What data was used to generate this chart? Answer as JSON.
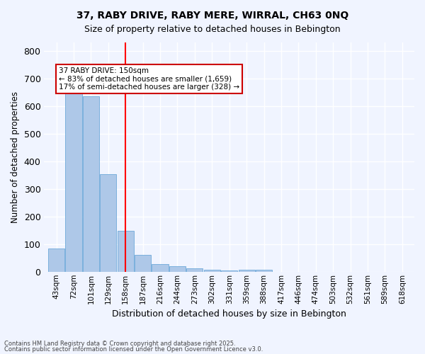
{
  "title1": "37, RABY DRIVE, RABY MERE, WIRRAL, CH63 0NQ",
  "title2": "Size of property relative to detached houses in Bebington",
  "xlabel": "Distribution of detached houses by size in Bebington",
  "ylabel": "Number of detached properties",
  "categories": [
    "43sqm",
    "72sqm",
    "101sqm",
    "129sqm",
    "158sqm",
    "187sqm",
    "216sqm",
    "244sqm",
    "273sqm",
    "302sqm",
    "331sqm",
    "359sqm",
    "388sqm",
    "417sqm",
    "446sqm",
    "474sqm",
    "503sqm",
    "532sqm",
    "561sqm",
    "589sqm",
    "618sqm"
  ],
  "values": [
    83,
    670,
    635,
    353,
    148,
    62,
    27,
    20,
    13,
    8,
    5,
    8,
    8,
    0,
    0,
    0,
    0,
    0,
    0,
    0,
    0
  ],
  "bar_color": "#aec8e8",
  "bar_edge_color": "#5a9fd4",
  "background_color": "#f0f4ff",
  "grid_color": "#ffffff",
  "red_line_x": 4.0,
  "annotation_text": "37 RABY DRIVE: 150sqm\n← 83% of detached houses are smaller (1,659)\n17% of semi-detached houses are larger (328) →",
  "annotation_box_color": "#ffffff",
  "annotation_box_edge": "#cc0000",
  "ylim": [
    0,
    830
  ],
  "yticks": [
    0,
    100,
    200,
    300,
    400,
    500,
    600,
    700,
    800
  ],
  "footer1": "Contains HM Land Registry data © Crown copyright and database right 2025.",
  "footer2": "Contains public sector information licensed under the Open Government Licence v3.0."
}
